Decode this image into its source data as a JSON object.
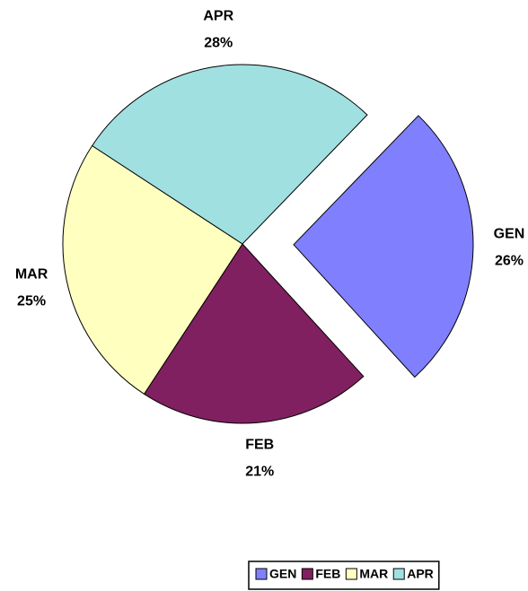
{
  "chart_data": {
    "type": "pie",
    "categories": [
      "GEN",
      "FEB",
      "MAR",
      "APR"
    ],
    "values": [
      26,
      21,
      25,
      28
    ],
    "value_labels": [
      "26%",
      "21%",
      "25%",
      "28%"
    ],
    "colors": [
      "#8080ff",
      "#802060",
      "#ffffc0",
      "#a0e0e0"
    ],
    "exploded": [
      true,
      false,
      false,
      false
    ],
    "legend": "bottom-right"
  }
}
